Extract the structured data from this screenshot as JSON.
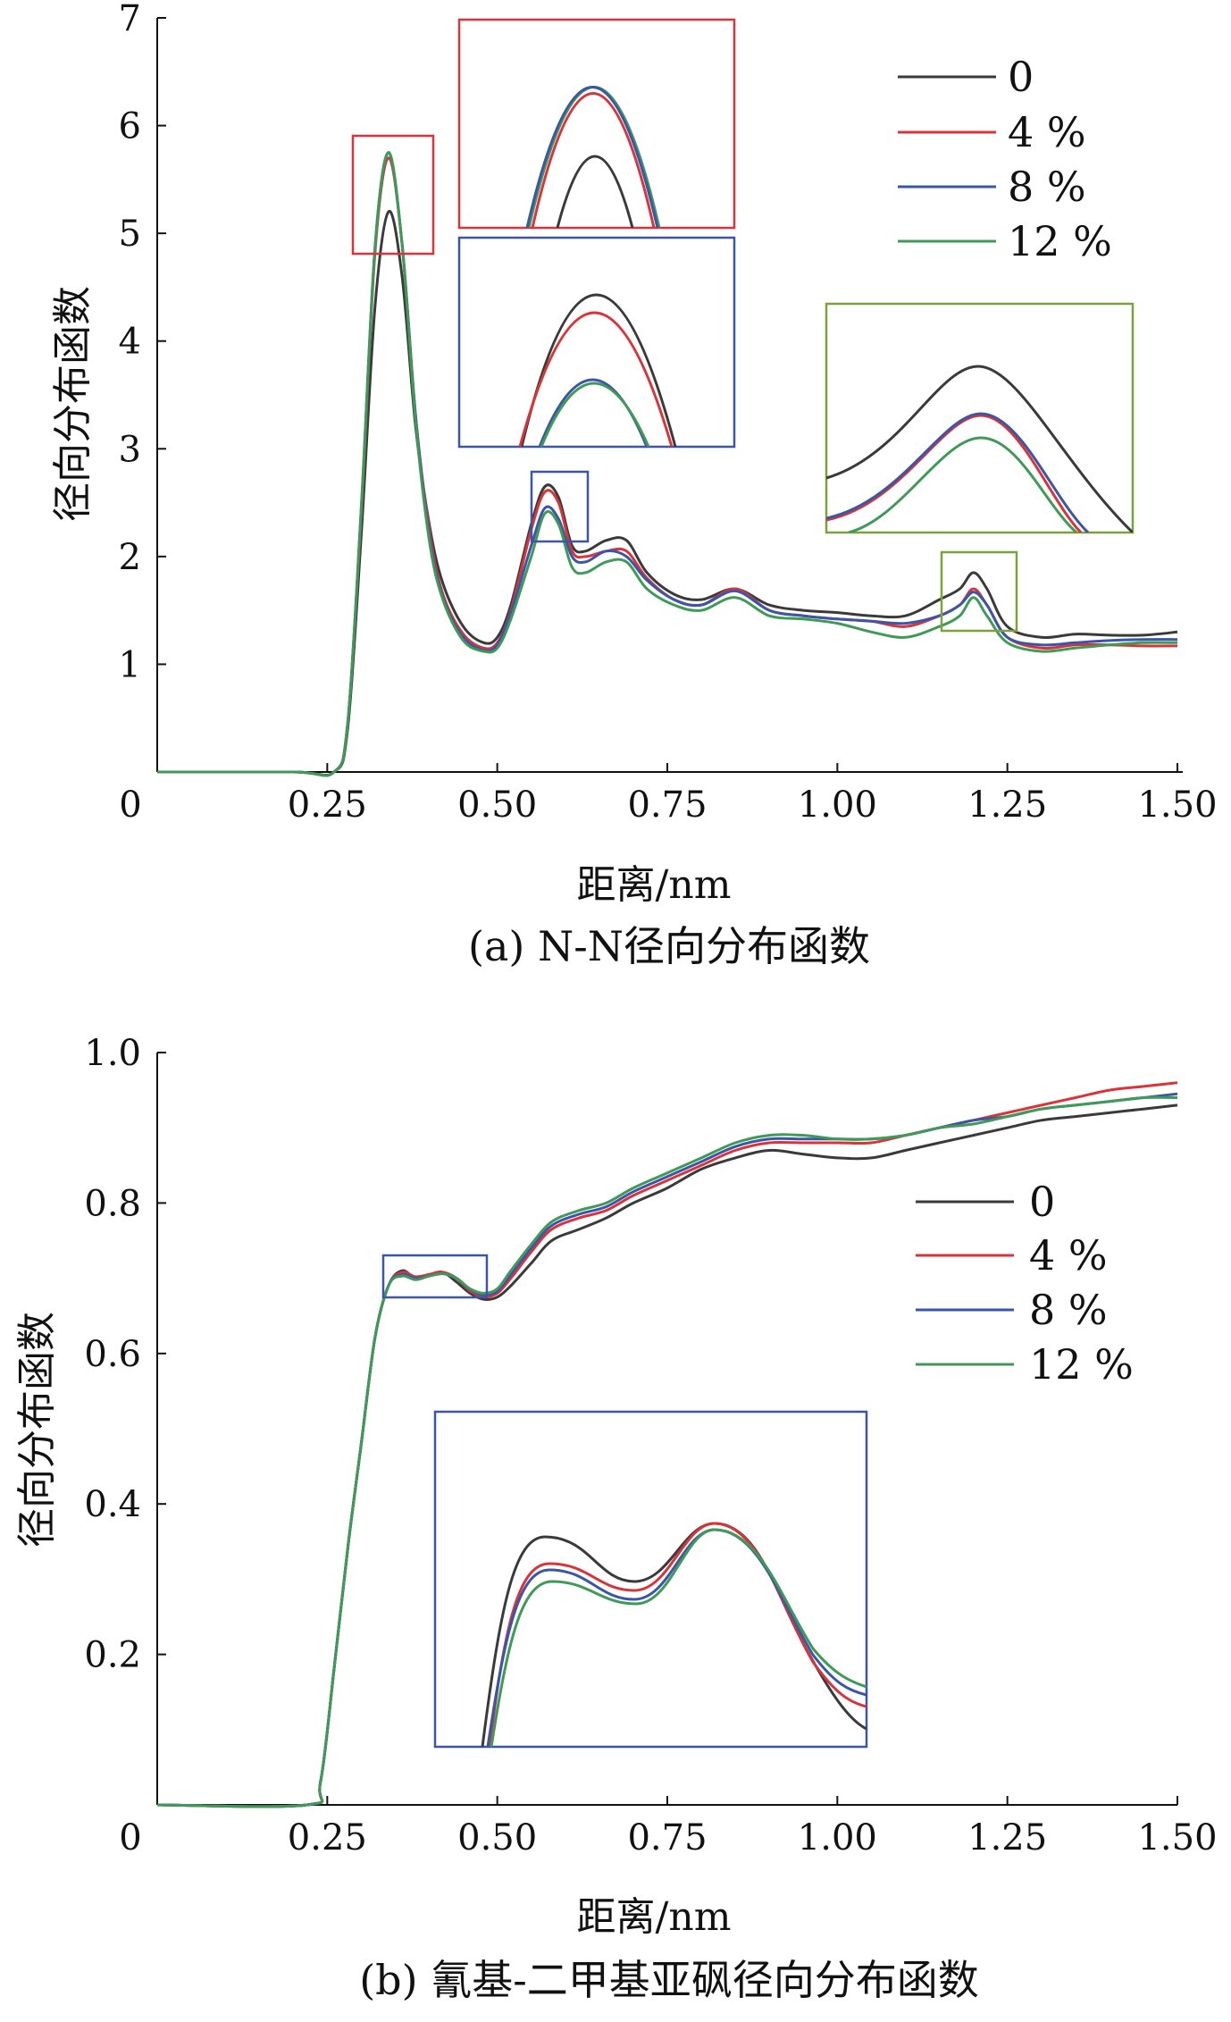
{
  "colors": {
    "s0": "#3a3a3a",
    "s4": "#d9343a",
    "s8": "#3b55a8",
    "s12": "#3f9a58",
    "box_red": "#d9343a",
    "box_blue": "#3b55a8",
    "box_green": "#7ca23a"
  },
  "chart_data": [
    {
      "type": "line",
      "caption": "(a) N-N径向分布函数",
      "xlabel": "距离/nm",
      "ylabel": "径向分布函数",
      "xlim": [
        0,
        1.5
      ],
      "ylim": [
        0,
        7
      ],
      "xticks": [
        "0",
        "0.25",
        "0.50",
        "0.75",
        "1.00",
        "1.25",
        "1.50"
      ],
      "yticks": [
        "1",
        "2",
        "3",
        "4",
        "5",
        "6",
        "7"
      ],
      "legend": {
        "position": "top-right",
        "entries": [
          "0",
          "4 %",
          "8 %",
          "12 %"
        ]
      },
      "grid": false,
      "x": [
        0,
        0.2,
        0.26,
        0.28,
        0.3,
        0.32,
        0.34,
        0.36,
        0.38,
        0.4,
        0.42,
        0.45,
        0.48,
        0.5,
        0.52,
        0.55,
        0.57,
        0.59,
        0.61,
        0.63,
        0.66,
        0.69,
        0.72,
        0.76,
        0.8,
        0.85,
        0.9,
        0.95,
        1.0,
        1.05,
        1.1,
        1.15,
        1.18,
        1.2,
        1.22,
        1.25,
        1.3,
        1.35,
        1.4,
        1.45,
        1.5
      ],
      "series": [
        {
          "name": "0",
          "values": [
            0,
            0,
            0,
            0.4,
            2.2,
            4.3,
            5.2,
            4.6,
            3.2,
            2.3,
            1.75,
            1.35,
            1.2,
            1.25,
            1.55,
            2.3,
            2.65,
            2.55,
            2.1,
            2.05,
            2.15,
            2.15,
            1.85,
            1.65,
            1.6,
            1.7,
            1.55,
            1.5,
            1.48,
            1.45,
            1.45,
            1.6,
            1.7,
            1.85,
            1.7,
            1.35,
            1.25,
            1.28,
            1.27,
            1.27,
            1.3
          ]
        },
        {
          "name": "4 %",
          "values": [
            0,
            0,
            0,
            0.45,
            2.4,
            4.8,
            5.7,
            4.9,
            3.3,
            2.25,
            1.65,
            1.28,
            1.15,
            1.2,
            1.5,
            2.25,
            2.6,
            2.5,
            2.05,
            2.0,
            2.05,
            2.05,
            1.8,
            1.6,
            1.55,
            1.7,
            1.5,
            1.45,
            1.42,
            1.4,
            1.35,
            1.45,
            1.55,
            1.7,
            1.55,
            1.25,
            1.15,
            1.18,
            1.18,
            1.17,
            1.17
          ]
        },
        {
          "name": "8 %",
          "values": [
            0,
            0,
            0,
            0.45,
            2.45,
            4.85,
            5.75,
            4.9,
            3.3,
            2.2,
            1.62,
            1.25,
            1.13,
            1.18,
            1.48,
            2.1,
            2.45,
            2.35,
            2.0,
            1.95,
            2.05,
            2.0,
            1.78,
            1.6,
            1.55,
            1.68,
            1.5,
            1.45,
            1.42,
            1.4,
            1.38,
            1.45,
            1.55,
            1.67,
            1.55,
            1.25,
            1.18,
            1.2,
            1.22,
            1.23,
            1.23
          ]
        },
        {
          "name": "12 %",
          "values": [
            0,
            0,
            0,
            0.45,
            2.45,
            4.85,
            5.75,
            4.9,
            3.25,
            2.15,
            1.6,
            1.22,
            1.12,
            1.15,
            1.42,
            2.0,
            2.4,
            2.3,
            1.9,
            1.85,
            1.95,
            1.95,
            1.7,
            1.55,
            1.5,
            1.62,
            1.45,
            1.42,
            1.38,
            1.3,
            1.25,
            1.35,
            1.45,
            1.62,
            1.45,
            1.2,
            1.12,
            1.15,
            1.18,
            1.2,
            1.2
          ]
        }
      ]
    },
    {
      "type": "line",
      "caption": "(b) 氰基-二甲基亚砜径向分布函数",
      "xlabel": "距离/nm",
      "ylabel": "径向分布函数",
      "xlim": [
        0,
        1.5
      ],
      "ylim": [
        0,
        1.0
      ],
      "xticks": [
        "0",
        "0.25",
        "0.50",
        "0.75",
        "1.00",
        "1.25",
        "1.50"
      ],
      "yticks": [
        "0.2",
        "0.4",
        "0.6",
        "0.8",
        "1.0"
      ],
      "legend": {
        "position": "right",
        "entries": [
          "0",
          "4 %",
          "8 %",
          "12 %"
        ]
      },
      "grid": false,
      "x": [
        0,
        0.22,
        0.24,
        0.26,
        0.28,
        0.3,
        0.32,
        0.34,
        0.36,
        0.38,
        0.4,
        0.42,
        0.44,
        0.46,
        0.48,
        0.5,
        0.52,
        0.55,
        0.58,
        0.62,
        0.66,
        0.7,
        0.75,
        0.8,
        0.85,
        0.9,
        0.95,
        1.0,
        1.05,
        1.1,
        1.15,
        1.2,
        1.25,
        1.3,
        1.35,
        1.4,
        1.45,
        1.5
      ],
      "series": [
        {
          "name": "0",
          "values": [
            0,
            0,
            0.03,
            0.18,
            0.34,
            0.48,
            0.62,
            0.69,
            0.71,
            0.7,
            0.705,
            0.708,
            0.695,
            0.68,
            0.672,
            0.675,
            0.69,
            0.72,
            0.75,
            0.765,
            0.78,
            0.8,
            0.82,
            0.845,
            0.86,
            0.87,
            0.865,
            0.86,
            0.86,
            0.87,
            0.88,
            0.89,
            0.9,
            0.91,
            0.915,
            0.92,
            0.925,
            0.93
          ]
        },
        {
          "name": "4 %",
          "values": [
            0,
            0,
            0.03,
            0.18,
            0.34,
            0.48,
            0.62,
            0.69,
            0.708,
            0.702,
            0.705,
            0.708,
            0.7,
            0.683,
            0.675,
            0.68,
            0.7,
            0.735,
            0.765,
            0.78,
            0.79,
            0.81,
            0.83,
            0.85,
            0.87,
            0.88,
            0.88,
            0.88,
            0.88,
            0.89,
            0.9,
            0.91,
            0.92,
            0.93,
            0.94,
            0.95,
            0.955,
            0.96
          ]
        },
        {
          "name": "8 %",
          "values": [
            0,
            0,
            0.03,
            0.18,
            0.34,
            0.48,
            0.62,
            0.69,
            0.705,
            0.7,
            0.703,
            0.706,
            0.7,
            0.685,
            0.678,
            0.683,
            0.705,
            0.74,
            0.77,
            0.785,
            0.795,
            0.815,
            0.835,
            0.855,
            0.875,
            0.885,
            0.885,
            0.885,
            0.885,
            0.89,
            0.9,
            0.91,
            0.915,
            0.925,
            0.93,
            0.935,
            0.94,
            0.945
          ]
        },
        {
          "name": "12 %",
          "values": [
            0,
            0,
            0.03,
            0.18,
            0.34,
            0.48,
            0.62,
            0.69,
            0.703,
            0.698,
            0.703,
            0.706,
            0.7,
            0.686,
            0.68,
            0.686,
            0.71,
            0.745,
            0.775,
            0.79,
            0.8,
            0.82,
            0.84,
            0.86,
            0.88,
            0.89,
            0.89,
            0.885,
            0.885,
            0.89,
            0.9,
            0.905,
            0.915,
            0.925,
            0.93,
            0.935,
            0.94,
            0.94
          ]
        }
      ]
    }
  ]
}
